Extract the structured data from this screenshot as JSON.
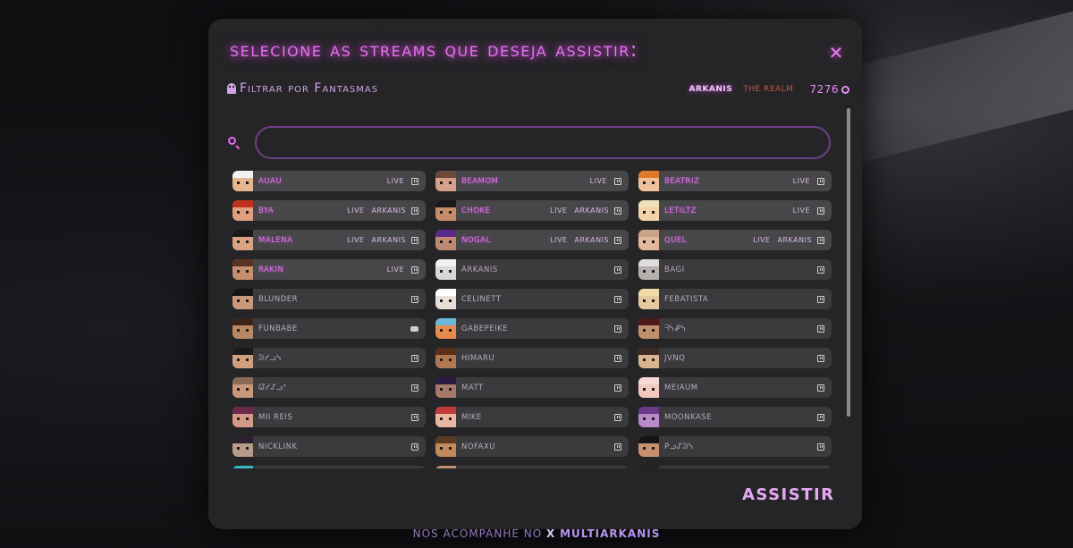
{
  "modal": {
    "title": "Selecione as streams que deseja assistir:",
    "close_label": "✕",
    "filter_label": "Filtrar por Fantasmas",
    "tag_arkanis": "ARKANIS",
    "tag_realm": "THE REALM",
    "viewer_count": "7276",
    "search": {
      "value": "",
      "placeholder": ""
    },
    "watch_label": "ASSISTIR"
  },
  "footer": {
    "prefix": "nos acompanhe no",
    "x_label": "X",
    "handle": "multiarkanis"
  },
  "streamers": [
    {
      "name": "AUAU",
      "live": "LIVE",
      "guild": "",
      "platform": "twitch",
      "skin": "#e6b78e",
      "hair": "#f2f2f2"
    },
    {
      "name": "BEAMOM",
      "live": "LIVE",
      "guild": "",
      "platform": "twitch",
      "skin": "#d8a08a",
      "hair": "#6b4a3c"
    },
    {
      "name": "BEATRIZ",
      "live": "LIVE",
      "guild": "",
      "platform": "twitch",
      "skin": "#f0c09a",
      "hair": "#e07a2a"
    },
    {
      "name": "BYA",
      "live": "LIVE",
      "guild": "ARKANIS",
      "platform": "twitch",
      "skin": "#e0a080",
      "hair": "#c0301e"
    },
    {
      "name": "CHOKE",
      "live": "LIVE",
      "guild": "ARKANIS",
      "platform": "twitch",
      "skin": "#c58c6a",
      "hair": "#1a1a1a"
    },
    {
      "name": "LETILTZ",
      "live": "LIVE",
      "guild": "",
      "platform": "twitch",
      "skin": "#f5d3a8",
      "hair": "#f0e0b8"
    },
    {
      "name": "MALENA",
      "live": "LIVE",
      "guild": "ARKANIS",
      "platform": "twitch",
      "skin": "#d9a383",
      "hair": "#181818"
    },
    {
      "name": "NOGAL",
      "live": "LIVE",
      "guild": "ARKANIS",
      "platform": "twitch",
      "skin": "#c08a72",
      "hair": "#5a2a8a"
    },
    {
      "name": "QUEL",
      "live": "LIVE",
      "guild": "ARKANIS",
      "platform": "twitch",
      "skin": "#e3b89a",
      "hair": "#c9a48a"
    },
    {
      "name": "RAKIN",
      "live": "LIVE",
      "guild": "",
      "platform": "twitch",
      "skin": "#c58e6e",
      "hair": "#5a3422"
    },
    {
      "name": "ARKANIS",
      "live": "",
      "guild": "",
      "platform": "twitch",
      "skin": "#d8d8d8",
      "hair": "#f0f0f0"
    },
    {
      "name": "BAGI",
      "live": "",
      "guild": "",
      "platform": "twitch",
      "skin": "#b8b0ae",
      "hair": "#dcdcdc"
    },
    {
      "name": "BLUNDER",
      "live": "",
      "guild": "",
      "platform": "twitch",
      "skin": "#c99878",
      "hair": "#151515"
    },
    {
      "name": "CELINETT",
      "live": "",
      "guild": "",
      "platform": "twitch",
      "skin": "#e8e0d8",
      "hair": "#ffffff"
    },
    {
      "name": "FEBATISTA",
      "live": "",
      "guild": "",
      "platform": "twitch",
      "skin": "#e6c8a0",
      "hair": "#f0dca8"
    },
    {
      "name": "FUNBABE",
      "live": "",
      "guild": "",
      "platform": "youtube",
      "skin": "#b88866",
      "hair": "#3a2418"
    },
    {
      "name": "GABEPEIKE",
      "live": "",
      "guild": "",
      "platform": "twitch",
      "skin": "#e88a50",
      "hair": "#6ab8d8"
    },
    {
      "name": "ᖷᓭᕵᓭ",
      "live": "",
      "guild": "",
      "platform": "twitch",
      "skin": "#c0906e",
      "hair": "#4a1a1a"
    },
    {
      "name": "ᕲᓰᓗᓭ",
      "live": "",
      "guild": "",
      "platform": "twitch",
      "skin": "#d0a07e",
      "hair": "#1a1a1a"
    },
    {
      "name": "HIMARU",
      "live": "",
      "guild": "",
      "platform": "twitch",
      "skin": "#b07850",
      "hair": "#5a3018"
    },
    {
      "name": "JVNQ",
      "live": "",
      "guild": "",
      "platform": "twitch",
      "skin": "#d8b490",
      "hair": "#3a2a20"
    },
    {
      "name": "ᘺᓰᔑᓗᐤ",
      "live": "",
      "guild": "",
      "platform": "twitch",
      "skin": "#c8987a",
      "hair": "#8a6a54"
    },
    {
      "name": "MATT",
      "live": "",
      "guild": "",
      "platform": "twitch",
      "skin": "#a8786a",
      "hair": "#2a1a40"
    },
    {
      "name": "MEIAUM",
      "live": "",
      "guild": "",
      "platform": "twitch",
      "skin": "#f2c8c0",
      "hair": "#f6d8d6"
    },
    {
      "name": "MII REIS",
      "live": "",
      "guild": "",
      "platform": "twitch",
      "skin": "#d49a88",
      "hair": "#6a2a4a"
    },
    {
      "name": "MIKE",
      "live": "",
      "guild": "",
      "platform": "twitch",
      "skin": "#e8b8a0",
      "hair": "#c23a3a"
    },
    {
      "name": "MOONKASE",
      "live": "",
      "guild": "",
      "platform": "twitch",
      "skin": "#b888c8",
      "hair": "#6a3a8a"
    },
    {
      "name": "NICKLINK",
      "live": "",
      "guild": "",
      "platform": "twitch",
      "skin": "#b89a88",
      "hair": "#2a2030"
    },
    {
      "name": "NOFAXU",
      "live": "",
      "guild": "",
      "platform": "twitch",
      "skin": "#c08a5a",
      "hair": "#5a3a20"
    },
    {
      "name": "ᑭᓗᔑᕲᓭ",
      "live": "",
      "guild": "",
      "platform": "twitch",
      "skin": "#c99070",
      "hair": "#151515"
    },
    {
      "name": "",
      "live": "",
      "guild": "",
      "platform": "",
      "skin": "#3ab8c8",
      "hair": "#3ab8c8"
    },
    {
      "name": "",
      "live": "",
      "guild": "",
      "platform": "",
      "skin": "#c09070",
      "hair": "#c09070"
    },
    {
      "name": "",
      "live": "",
      "guild": "",
      "platform": "",
      "skin": "#222222",
      "hair": "#222222"
    }
  ]
}
